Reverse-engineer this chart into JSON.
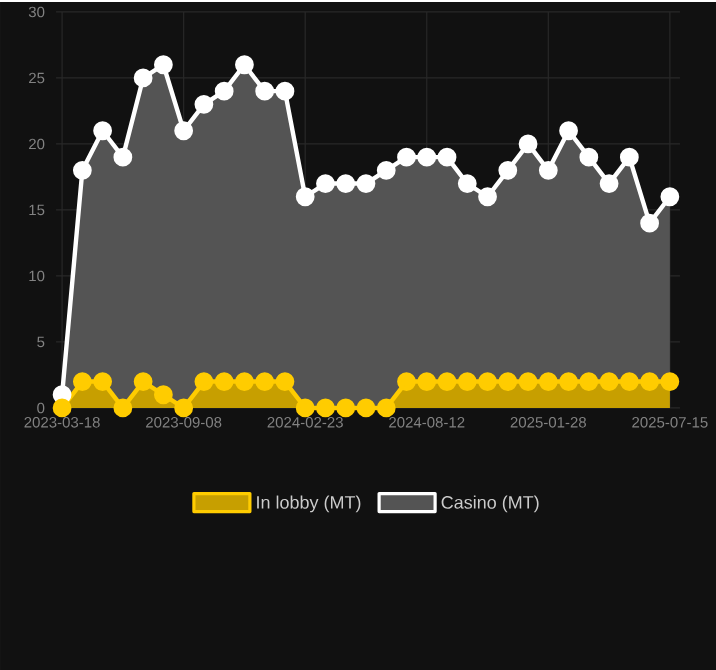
{
  "chart_data": {
    "type": "area",
    "categories": [
      "2023-03-18",
      null,
      null,
      null,
      null,
      null,
      "2023-09-08",
      null,
      null,
      null,
      null,
      null,
      "2024-02-23",
      null,
      null,
      null,
      null,
      null,
      "2024-08-12",
      null,
      null,
      null,
      null,
      null,
      "2025-01-28",
      null,
      null,
      null,
      null,
      null,
      "2025-07-15"
    ],
    "series": [
      {
        "name": "In lobby (MT)",
        "color": "#ffcc00",
        "values": [
          0,
          2,
          2,
          0,
          2,
          1,
          0,
          2,
          2,
          2,
          2,
          2,
          0,
          0,
          0,
          0,
          0,
          2,
          2,
          2,
          2,
          2,
          2,
          2,
          2,
          2,
          2,
          2,
          2,
          2,
          2
        ]
      },
      {
        "name": "Casino (MT)",
        "color": "#ffffff",
        "values": [
          1,
          18,
          21,
          19,
          25,
          26,
          21,
          23,
          24,
          26,
          24,
          24,
          16,
          17,
          17,
          17,
          18,
          19,
          19,
          19,
          17,
          16,
          18,
          20,
          18,
          21,
          19,
          17,
          19,
          14,
          16
        ]
      }
    ],
    "ylim": [
      0,
      30
    ],
    "yticks": [
      0,
      5,
      10,
      15,
      20,
      25,
      30
    ],
    "grid": true,
    "legend": "bottom",
    "marker": "circle"
  }
}
